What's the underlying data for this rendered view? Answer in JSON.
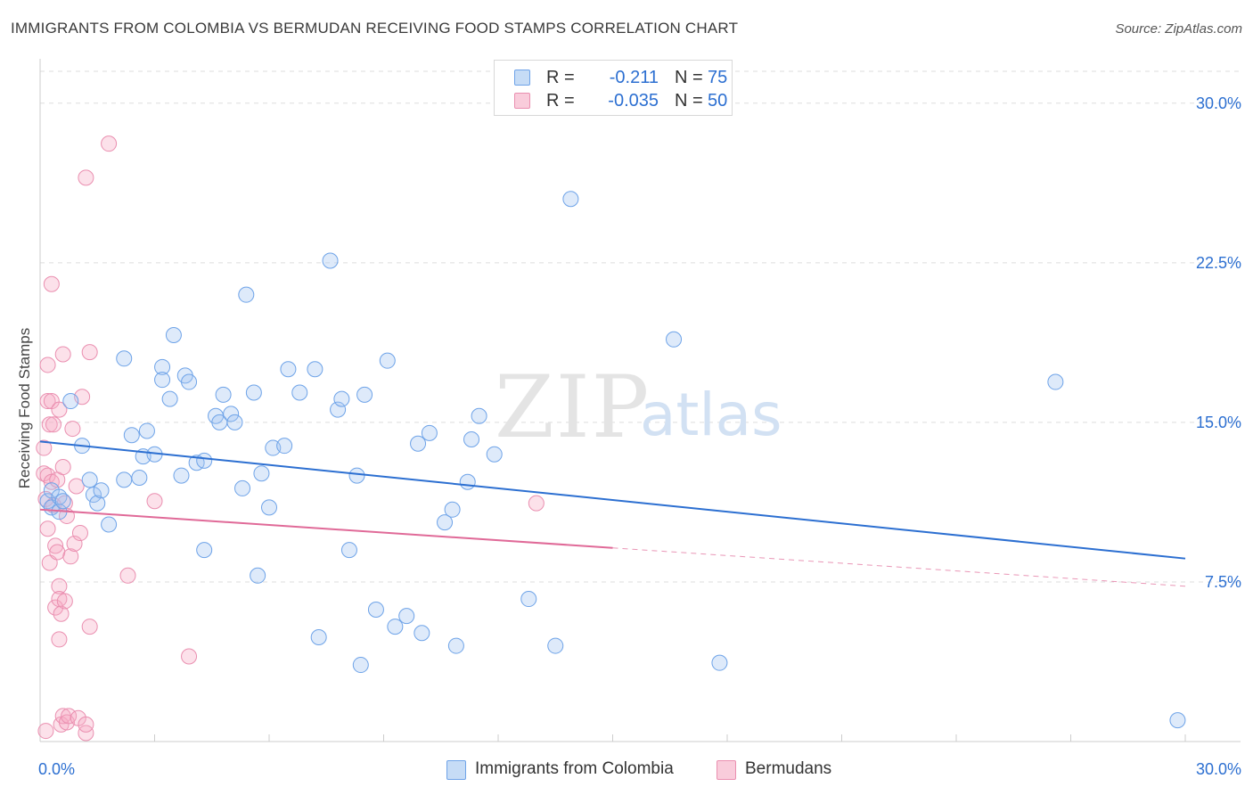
{
  "chart_data": {
    "type": "scatter",
    "title": "IMMIGRANTS FROM COLOMBIA VS BERMUDAN RECEIVING FOOD STAMPS CORRELATION CHART",
    "source": "Source: ZipAtlas.com",
    "ylabel": "Receiving Food Stamps",
    "xlabel": "",
    "xlim": [
      0,
      30
    ],
    "ylim": [
      0,
      31.5
    ],
    "x_tick_labels": [
      "0.0%",
      "30.0%"
    ],
    "y_ticks": [
      7.5,
      15.0,
      22.5,
      30.0
    ],
    "y_tick_labels": [
      "7.5%",
      "15.0%",
      "22.5%",
      "30.0%"
    ],
    "grid": true,
    "watermark": {
      "zip": "ZIP",
      "atlas": "atlas"
    },
    "legend": {
      "rows": [
        {
          "r_label": "R =",
          "r_value": "-0.211",
          "n_label": "N =",
          "n_value": "75"
        },
        {
          "r_label": "R =",
          "r_value": "-0.035",
          "n_label": "N =",
          "n_value": "50"
        }
      ]
    },
    "series": [
      {
        "name": "Immigrants from Colombia",
        "color": "#6ea3e8",
        "fill": "rgba(160,196,240,0.35)",
        "line_color": "#2c6fd1",
        "trend": {
          "x0": 0.0,
          "y0": 14.1,
          "x1": 30.0,
          "y1": 8.6
        },
        "points": [
          [
            0.2,
            11.3
          ],
          [
            0.3,
            11.0
          ],
          [
            0.3,
            11.8
          ],
          [
            0.5,
            10.8
          ],
          [
            0.5,
            11.5
          ],
          [
            0.6,
            11.3
          ],
          [
            0.8,
            16.0
          ],
          [
            1.1,
            13.9
          ],
          [
            1.3,
            12.3
          ],
          [
            1.4,
            11.6
          ],
          [
            1.5,
            11.2
          ],
          [
            1.6,
            11.8
          ],
          [
            1.8,
            10.2
          ],
          [
            2.2,
            12.3
          ],
          [
            2.2,
            18.0
          ],
          [
            2.4,
            14.4
          ],
          [
            2.6,
            12.4
          ],
          [
            2.7,
            13.4
          ],
          [
            2.8,
            14.6
          ],
          [
            3.0,
            13.5
          ],
          [
            3.2,
            17.6
          ],
          [
            3.2,
            17.0
          ],
          [
            3.4,
            16.1
          ],
          [
            3.5,
            19.1
          ],
          [
            3.7,
            12.5
          ],
          [
            3.8,
            17.2
          ],
          [
            3.9,
            16.9
          ],
          [
            4.1,
            13.1
          ],
          [
            4.3,
            13.2
          ],
          [
            4.3,
            9.0
          ],
          [
            4.6,
            15.3
          ],
          [
            4.7,
            15.0
          ],
          [
            4.8,
            16.3
          ],
          [
            5.0,
            15.4
          ],
          [
            5.1,
            15.0
          ],
          [
            5.3,
            11.9
          ],
          [
            5.4,
            21.0
          ],
          [
            5.6,
            16.4
          ],
          [
            5.7,
            7.8
          ],
          [
            5.8,
            12.6
          ],
          [
            6.0,
            11.0
          ],
          [
            6.1,
            13.8
          ],
          [
            6.4,
            13.9
          ],
          [
            6.5,
            17.5
          ],
          [
            6.8,
            16.4
          ],
          [
            7.2,
            17.5
          ],
          [
            7.3,
            4.9
          ],
          [
            7.6,
            22.6
          ],
          [
            7.8,
            15.6
          ],
          [
            7.9,
            16.1
          ],
          [
            8.1,
            9.0
          ],
          [
            8.3,
            12.5
          ],
          [
            8.4,
            3.6
          ],
          [
            8.5,
            16.3
          ],
          [
            8.8,
            6.2
          ],
          [
            9.1,
            17.9
          ],
          [
            9.3,
            5.4
          ],
          [
            9.6,
            5.9
          ],
          [
            9.9,
            14.0
          ],
          [
            10.0,
            5.1
          ],
          [
            10.2,
            14.5
          ],
          [
            10.6,
            10.3
          ],
          [
            10.8,
            10.9
          ],
          [
            10.9,
            4.5
          ],
          [
            11.2,
            12.2
          ],
          [
            11.3,
            14.2
          ],
          [
            11.5,
            15.3
          ],
          [
            11.9,
            13.5
          ],
          [
            12.8,
            6.7
          ],
          [
            13.5,
            4.5
          ],
          [
            13.9,
            25.5
          ],
          [
            16.6,
            18.9
          ],
          [
            17.8,
            3.7
          ],
          [
            26.6,
            16.9
          ],
          [
            29.8,
            1.0
          ]
        ]
      },
      {
        "name": "Bermudans",
        "color": "#ea8fb0",
        "fill": "rgba(245,170,195,0.35)",
        "line_color": "#e06a98",
        "trend": {
          "x0": 0.0,
          "y0": 10.9,
          "x1": 15.0,
          "y1": 9.1
        },
        "trend_dashed": {
          "x0": 15.0,
          "y0": 9.1,
          "x1": 30.0,
          "y1": 7.3
        },
        "points": [
          [
            0.1,
            13.8
          ],
          [
            0.1,
            12.6
          ],
          [
            0.15,
            11.4
          ],
          [
            0.2,
            17.7
          ],
          [
            0.2,
            16.0
          ],
          [
            0.2,
            12.5
          ],
          [
            0.2,
            10.0
          ],
          [
            0.25,
            8.4
          ],
          [
            0.25,
            14.9
          ],
          [
            0.3,
            21.5
          ],
          [
            0.3,
            16.0
          ],
          [
            0.3,
            12.2
          ],
          [
            0.35,
            14.9
          ],
          [
            0.35,
            11.1
          ],
          [
            0.4,
            9.2
          ],
          [
            0.4,
            6.3
          ],
          [
            0.45,
            8.9
          ],
          [
            0.45,
            12.3
          ],
          [
            0.5,
            15.6
          ],
          [
            0.5,
            7.3
          ],
          [
            0.5,
            6.7
          ],
          [
            0.55,
            6.0
          ],
          [
            0.5,
            4.8
          ],
          [
            0.55,
            0.8
          ],
          [
            0.6,
            18.2
          ],
          [
            0.6,
            12.9
          ],
          [
            0.6,
            1.2
          ],
          [
            0.65,
            6.6
          ],
          [
            0.65,
            11.2
          ],
          [
            0.7,
            10.6
          ],
          [
            0.7,
            0.9
          ],
          [
            0.75,
            1.2
          ],
          [
            0.8,
            8.7
          ],
          [
            0.85,
            14.7
          ],
          [
            0.9,
            9.3
          ],
          [
            0.95,
            12.0
          ],
          [
            1.0,
            1.1
          ],
          [
            1.05,
            9.8
          ],
          [
            1.1,
            16.2
          ],
          [
            1.2,
            0.4
          ],
          [
            1.2,
            0.8
          ],
          [
            1.2,
            26.5
          ],
          [
            1.3,
            18.3
          ],
          [
            1.3,
            5.4
          ],
          [
            1.8,
            28.1
          ],
          [
            2.3,
            7.8
          ],
          [
            3.0,
            11.3
          ],
          [
            3.9,
            4.0
          ],
          [
            13.0,
            11.2
          ],
          [
            0.15,
            0.5
          ]
        ]
      }
    ]
  }
}
